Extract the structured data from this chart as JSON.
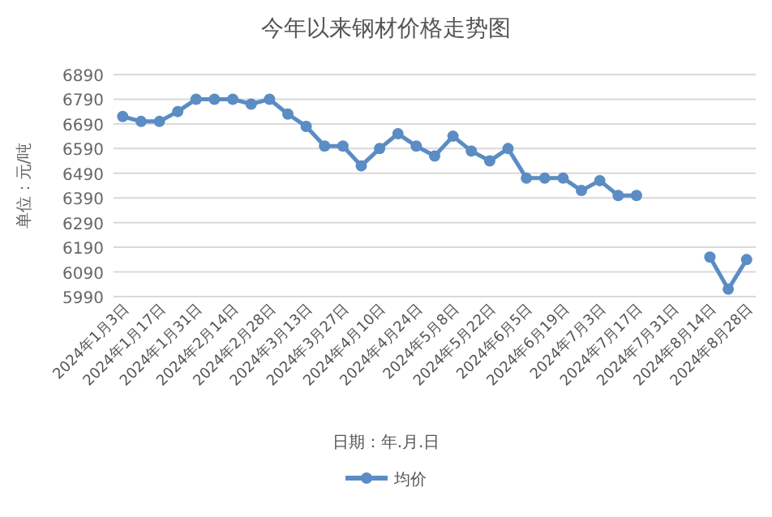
{
  "chart_data": {
    "type": "line",
    "title": "今年以来钢材价格走势图",
    "xlabel": "日期：年.月.日",
    "ylabel": "单位：元/吨",
    "categories": [
      "2024年1月3日",
      null,
      "2024年1月17日",
      null,
      "2024年1月31日",
      null,
      "2024年2月14日",
      null,
      "2024年2月28日",
      null,
      "2024年3月13日",
      null,
      "2024年3月27日",
      null,
      "2024年4月10日",
      null,
      "2024年4月24日",
      null,
      "2024年5月8日",
      null,
      "2024年5月22日",
      null,
      "2024年6月5日",
      null,
      "2024年6月19日",
      null,
      "2024年7月3日",
      null,
      "2024年7月17日",
      null,
      "2024年7月31日",
      null,
      "2024年8月14日",
      null,
      "2024年8月28日"
    ],
    "series": [
      {
        "name": "均价",
        "color": "#5b8cc4",
        "values": [
          6720,
          6700,
          6700,
          6740,
          6790,
          6790,
          6790,
          6770,
          6790,
          6730,
          6680,
          6600,
          6600,
          6520,
          6590,
          6650,
          6600,
          6560,
          6640,
          6580,
          6540,
          6590,
          6470,
          6470,
          6470,
          6420,
          6460,
          6400,
          6400,
          null,
          null,
          null,
          6150,
          6020,
          6140
        ]
      }
    ],
    "ylim": [
      5990,
      6890
    ],
    "yticks": [
      5990,
      6090,
      6190,
      6290,
      6390,
      6490,
      6590,
      6690,
      6790,
      6890
    ],
    "grid": "y",
    "legend": "bottom",
    "marker": "circle",
    "line_style": "solid"
  }
}
